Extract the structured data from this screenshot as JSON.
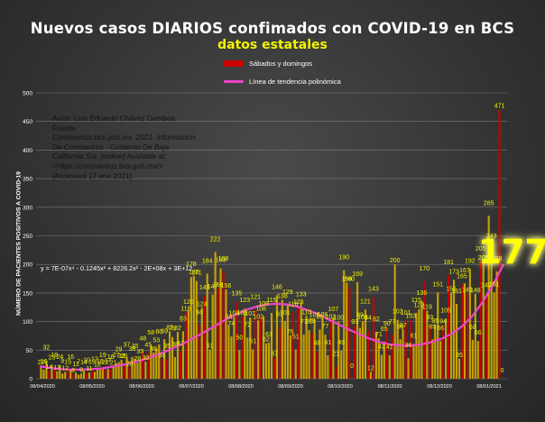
{
  "title": "Nuevos casos DIARIOS confimados con COVID-19 en BCS",
  "subtitle": "datos estatales",
  "source_lines": [
    "Autor: Luis Eduardo Chávez Gamboa",
    "Fuente:",
    "Coronavirus.bcs.gob.mx. 2021. Información",
    "De Coronavirus - Gobierno De Baja",
    "California Sur. [online] Available at:",
    "<https://coronavirus.bcs.gob.mx/>",
    "[Accessed 17 ene 2021]."
  ],
  "equation": "y = 7E-07x⁴ - 0.1245x³ + 8226.2x² - 2E+08x + 3E+12",
  "highlight_value": "177",
  "colors": {
    "bar": "#c8a200",
    "weekend_bar": "#c40000",
    "trend": "#ee44c9",
    "label": "#f3f300"
  },
  "chart_data": {
    "type": "bar",
    "title": "Nuevos casos DIARIOS confimados con COVID-19 en BCS",
    "subtitle": "datos estatales",
    "ylabel": "NÚMERO DE PACIENTES POSITIVOS A COVID-19",
    "xlabel": "",
    "ylim": [
      0,
      500
    ],
    "yticks": [
      0,
      50,
      100,
      150,
      200,
      250,
      300,
      350,
      400,
      450,
      500
    ],
    "xticks": [
      "08/04/2020",
      "08/05/2020",
      "08/06/2020",
      "08/07/2020",
      "08/08/2020",
      "08/09/2020",
      "08/10/2020",
      "08/11/2020",
      "08/12/2020",
      "08/01/2021"
    ],
    "grid": true,
    "legend_position": "top-center",
    "series": [
      {
        "name": "Sábados y domingos"
      },
      {
        "name": "Línea de tendencia polinómica"
      }
    ],
    "bar_values": [
      22,
      16,
      32,
      14,
      23,
      19,
      13,
      24,
      9,
      12,
      15,
      16,
      8,
      11,
      7,
      9,
      14,
      10,
      11,
      15,
      12,
      18,
      16,
      19,
      22,
      17,
      16,
      21,
      27,
      29,
      33,
      25,
      37,
      20,
      38,
      35,
      28,
      33,
      48,
      30,
      45,
      58,
      46,
      53,
      60,
      34,
      69,
      35,
      83,
      73,
      38,
      82,
      47,
      83,
      116,
      120,
      178,
      180,
      171,
      94,
      124,
      145,
      184,
      51,
      147,
      222,
      158,
      193,
      188,
      156,
      94,
      74,
      108,
      135,
      50,
      109,
      123,
      72,
      107,
      51,
      121,
      102,
      108,
      109,
      62,
      63,
      115,
      37,
      146,
      91,
      138,
      101,
      129,
      76,
      116,
      51,
      128,
      133,
      77,
      110,
      85,
      79,
      105,
      48,
      86,
      106,
      77,
      41,
      102,
      107,
      21,
      100,
      49,
      190,
      168,
      160,
      0,
      93,
      169,
      89,
      101,
      121,
      84,
      12,
      143,
      82,
      71,
      42,
      65,
      90,
      41,
      77,
      200,
      103,
      69,
      87,
      101,
      36,
      103,
      61,
      115,
      122,
      136,
      170,
      119,
      93,
      69,
      95,
      151,
      66,
      94,
      105,
      181,
      151,
      173,
      131,
      35,
      165,
      167,
      149,
      192,
      68,
      148,
      66,
      205,
      205,
      149,
      285,
      243,
      151,
      188,
      471,
      0
    ],
    "label_text": [
      "22",
      "16",
      "32",
      "14",
      "23",
      "19",
      "13",
      "24",
      "9",
      "12",
      "15",
      "16",
      "8",
      "11",
      "7",
      "9",
      "14",
      "10",
      "11",
      "15",
      "12",
      "18",
      "16",
      "19",
      "22",
      "17",
      "16",
      "21",
      "27",
      "29",
      "33",
      "25",
      "37",
      "20",
      "38",
      "35",
      "28",
      "33",
      "48",
      "30",
      "45",
      "58",
      "46",
      "53",
      "60",
      "34",
      "69",
      "35",
      "83",
      "73",
      "38",
      "82",
      "47",
      "83",
      "116",
      "120",
      "178",
      "180",
      "171",
      "94",
      "124",
      "145",
      "184",
      "51",
      "147",
      "222",
      "158",
      "193",
      "188",
      "156",
      "94",
      "74",
      "108",
      "135",
      "50",
      "109",
      "123",
      "72",
      "107",
      "51",
      "121",
      "102",
      "108",
      "109",
      "62",
      "63",
      "115",
      "37",
      "146",
      "91",
      "138",
      "101",
      "129",
      "76",
      "116",
      "51",
      "128",
      "133",
      "77",
      "110",
      "85",
      "79",
      "105",
      "48",
      "86",
      "106",
      "77",
      "41",
      "102",
      "107",
      "21",
      "100",
      "49",
      "190",
      "168",
      "160",
      "0",
      "93",
      "169",
      "89",
      "101",
      "121",
      "84",
      "12",
      "143",
      "82",
      "71",
      "42",
      "65",
      "90",
      "41",
      "77",
      "200",
      "103",
      "69",
      "87",
      "101",
      "36",
      "103",
      "61",
      "115",
      "122",
      "136",
      "170",
      "119",
      "93",
      "69",
      "95",
      "151",
      "66",
      "94",
      "105",
      "181",
      "151",
      "173",
      "131",
      "35",
      "165",
      "167",
      "149",
      "192",
      "68",
      "148",
      "66",
      "205",
      "205",
      "149",
      "285",
      "243",
      "151",
      "188",
      "471",
      "0"
    ],
    "weekend_indices": [
      3,
      5,
      10,
      12,
      17,
      19,
      24,
      26,
      31,
      33,
      38,
      40,
      45,
      47,
      52,
      54,
      59,
      61,
      66,
      68,
      73,
      75,
      80,
      82,
      87,
      89,
      94,
      96,
      101,
      103,
      108,
      110,
      115,
      117,
      122,
      124,
      129,
      131,
      136,
      138,
      143,
      145,
      150,
      152,
      157,
      159,
      164,
      166,
      171,
      173
    ],
    "trend": [
      22,
      19,
      17,
      16,
      16,
      17,
      18,
      21,
      24,
      28,
      33,
      39,
      46,
      54,
      62,
      72,
      82,
      92,
      103,
      112,
      120,
      126,
      130,
      131,
      130,
      126,
      120,
      113,
      104,
      95,
      86,
      78,
      70,
      64,
      60,
      58,
      58,
      60,
      64,
      70,
      79,
      92,
      110,
      135,
      165,
      200
    ],
    "fit_equation": "y = 7E-07x⁴ - 0.1245x³ + 8226.2x² - 2E+08x + 3E+12"
  }
}
